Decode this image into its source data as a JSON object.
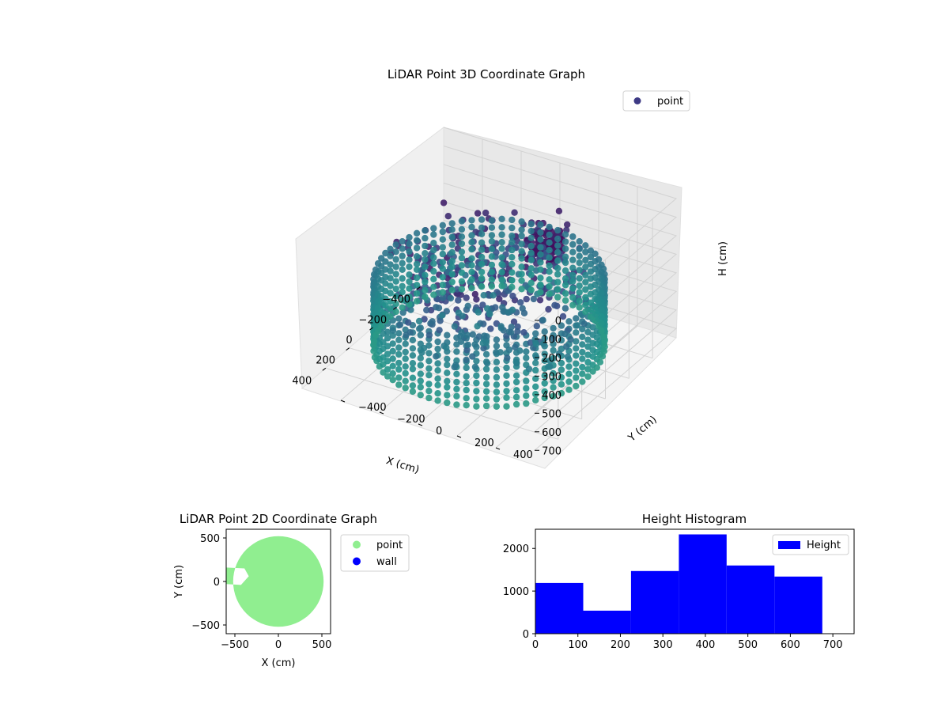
{
  "chart_data": [
    {
      "type": "scatter",
      "projection": "3d",
      "title": "LiDAR Point 3D Coordinate Graph",
      "xlabel": "X (cm)",
      "ylabel": "Y (cm)",
      "zlabel": "H (cm)",
      "xlim": [
        -600,
        600
      ],
      "ylim": [
        -600,
        600
      ],
      "zlim": [
        750,
        0
      ],
      "x_ticks": [
        "−400",
        "−200",
        "0",
        "200",
        "400"
      ],
      "y_ticks": [
        "−400",
        "−200",
        "0",
        "200",
        "400"
      ],
      "z_ticks": [
        "0",
        "100",
        "200",
        "300",
        "400",
        "500",
        "600",
        "700"
      ],
      "legend": {
        "placement": "upper right",
        "entries": [
          "point"
        ]
      },
      "colormap": "viridis",
      "grid": true,
      "series": [
        {
          "name": "point",
          "color": "#3e3a85",
          "structures": [
            {
              "shape": "cylindrical wall",
              "center": [
                0,
                0
              ],
              "radius": 510,
              "h_range": [
                300,
                680
              ]
            },
            {
              "shape": "inner surface",
              "x_range": [
                -450,
                450
              ],
              "y_range": [
                -450,
                450
              ],
              "h_range": [
                100,
                700
              ]
            }
          ]
        }
      ]
    },
    {
      "type": "scatter",
      "title": "LiDAR Point 2D Coordinate Graph",
      "xlabel": "X (cm)",
      "ylabel": "Y (cm)",
      "xlim": [
        -600,
        600
      ],
      "ylim": [
        -600,
        600
      ],
      "x_ticks": [
        "−500",
        "0",
        "500"
      ],
      "y_ticks": [
        "500",
        "0",
        "−500"
      ],
      "legend": {
        "placement": "outside right",
        "entries": [
          "point",
          "wall"
        ]
      },
      "series": [
        {
          "name": "point",
          "color": "#90ee90",
          "region": {
            "shape": "disc",
            "center": [
              0,
              0
            ],
            "radius": 520
          }
        },
        {
          "name": "wall",
          "color": "#0000ff",
          "points": []
        }
      ]
    },
    {
      "type": "bar",
      "subtype": "histogram",
      "title": "Height Histogram",
      "xlim": [
        0,
        750
      ],
      "ylim": [
        0,
        2450
      ],
      "x_ticks": [
        "0",
        "100",
        "200",
        "300",
        "400",
        "500",
        "600",
        "700"
      ],
      "y_ticks": [
        "0",
        "1000",
        "2000"
      ],
      "legend": {
        "placement": "upper right",
        "entries": [
          "Height"
        ]
      },
      "series": [
        {
          "name": "Height",
          "color": "#0000ff",
          "bins": [
            0,
            112.5,
            225,
            337.5,
            450,
            562.5,
            675
          ],
          "values": [
            1190,
            540,
            1470,
            2330,
            1600,
            1340
          ]
        }
      ]
    }
  ]
}
